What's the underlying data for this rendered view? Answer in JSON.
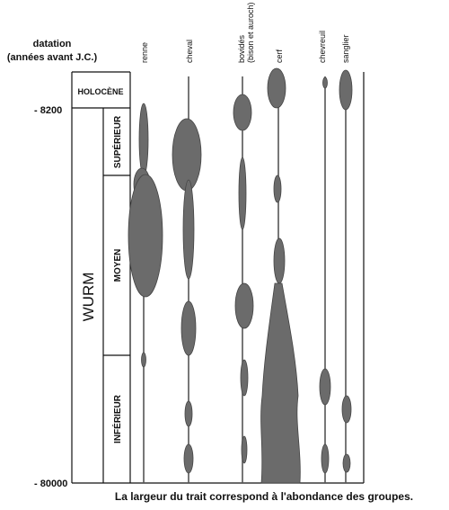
{
  "header": {
    "title": "datation",
    "subtitle": "(années avant J.C.)"
  },
  "time_labels": [
    "- 8200",
    "- 80000"
  ],
  "periods": {
    "holocene": "HOLOCÈNE",
    "superieur": "SUPÉRIEUR",
    "moyen": "MOYEN",
    "inferieur": "INFÉRIEUR",
    "wurm": "WURM"
  },
  "species": [
    {
      "label": "renne"
    },
    {
      "label": "cheval"
    },
    {
      "label": "bovidés",
      "sublabel": "(bison et auroch)"
    },
    {
      "label": "cerf"
    },
    {
      "label": "chevreuil"
    },
    {
      "label": "sanglier"
    }
  ],
  "caption": "La largeur du trait correspond à l'abondance des groupes."
}
